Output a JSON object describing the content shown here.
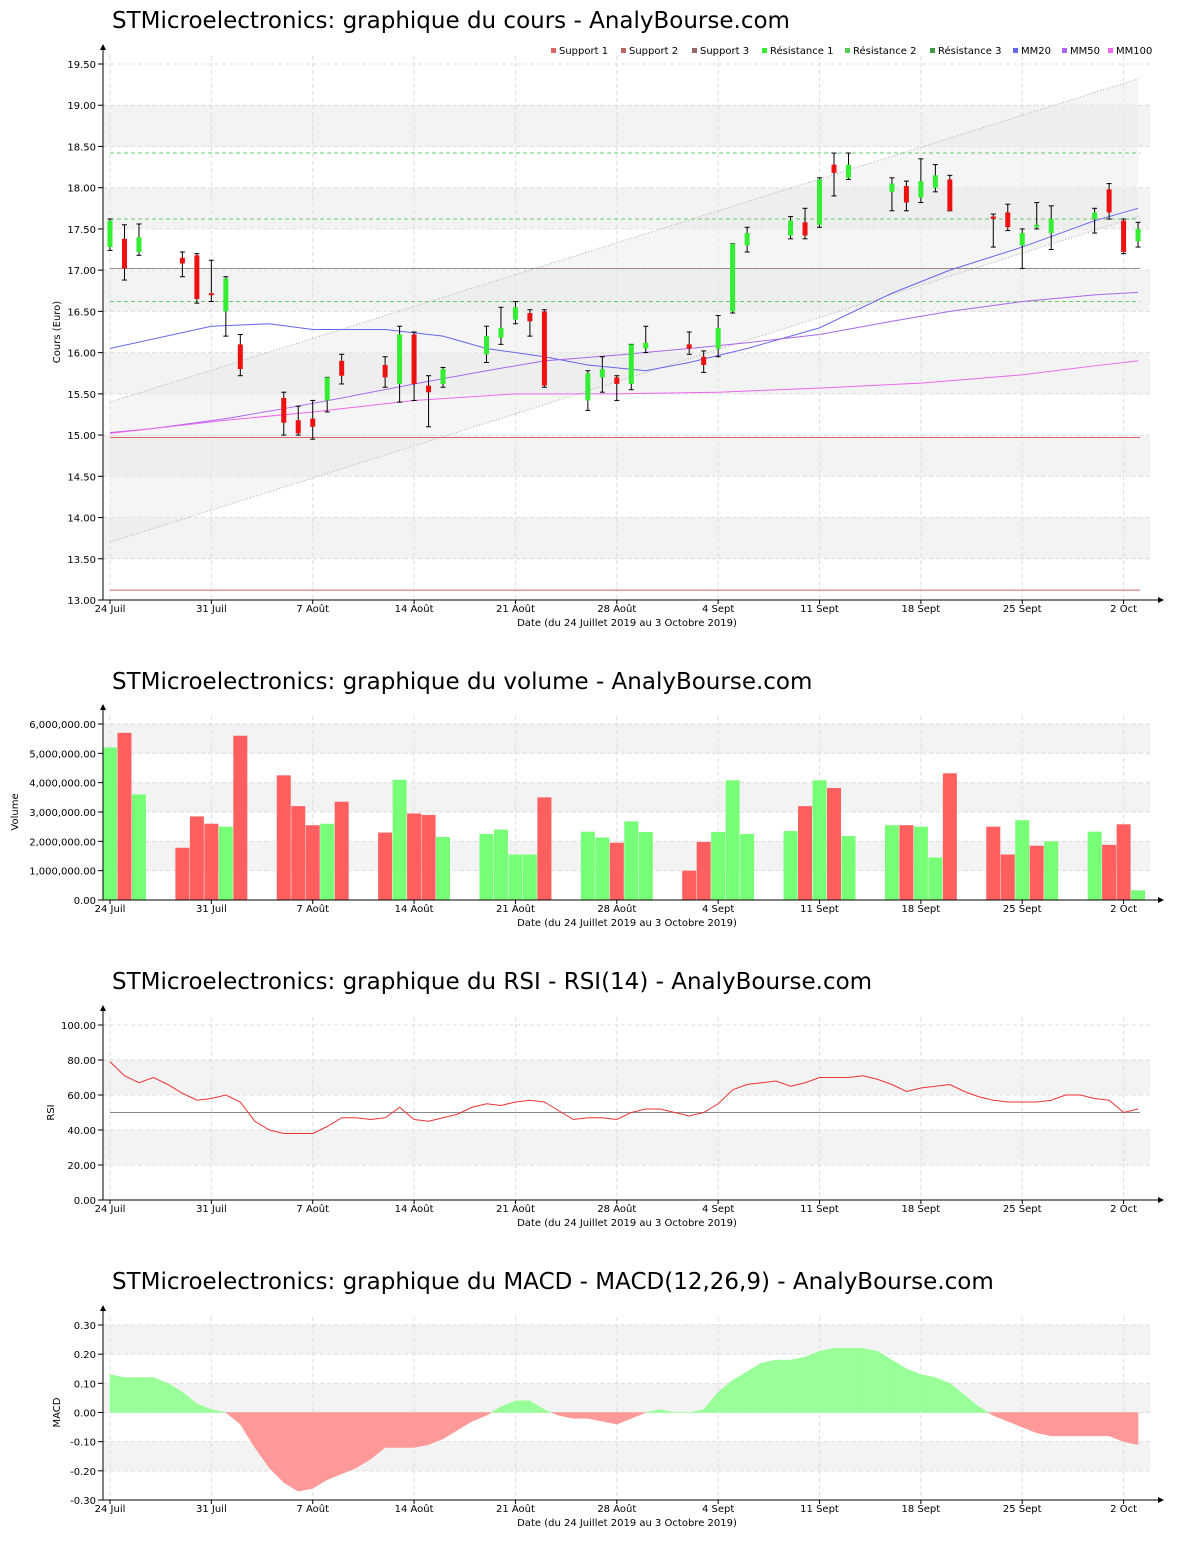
{
  "titles": {
    "price": "STMicroelectronics: graphique du cours - AnalyBourse.com",
    "volume": "STMicroelectronics: graphique du volume - AnalyBourse.com",
    "rsi": "STMicroelectronics: graphique du RSI - RSI(14) - AnalyBourse.com",
    "macd": "STMicroelectronics: graphique du MACD - MACD(12,26,9) - AnalyBourse.com"
  },
  "colors": {
    "up": "#33ee33",
    "down": "#ee1111",
    "vol_up": "#77ff77",
    "vol_down": "#ff5f5f",
    "support": "#dd6666",
    "resistance": "#66cc66",
    "mm20": "#6666ee",
    "mm50": "#aa66ee",
    "mm100": "#ee66ee",
    "rsi": "#ee3333",
    "macd_pos": "#99ff99",
    "macd_neg": "#ff9999"
  },
  "chart_data": [
    {
      "id": "price",
      "type": "candlestick",
      "title": "STMicroelectronics: graphique du cours - AnalyBourse.com",
      "xlabel": "Date (du 24 Juillet 2019 au 3 Octobre 2019)",
      "ylabel": "Cours (Euro)",
      "ylim": [
        13.0,
        19.5
      ],
      "yticks": [
        "13.00",
        "13.50",
        "14.00",
        "14.50",
        "15.00",
        "15.50",
        "16.00",
        "16.50",
        "17.00",
        "17.50",
        "18.00",
        "18.50",
        "19.00",
        "19.50"
      ],
      "xticks": [
        "24 Juil",
        "31 Juil",
        "7 Août",
        "14 Août",
        "21 Août",
        "28 Août",
        "4 Sept",
        "11 Sept",
        "18 Sept",
        "25 Sept",
        "2 Oct"
      ],
      "legend": [
        "Support 1",
        "Support 2",
        "Support 3",
        "Résistance 1",
        "Résistance 2",
        "Résistance 3",
        "MM20",
        "MM50",
        "MM100"
      ],
      "grid": true,
      "levels": [
        {
          "name": "Support 1",
          "value": 14.97
        },
        {
          "name": "Support 2",
          "value": 17.02
        },
        {
          "name": "Support 3",
          "value": 13.12
        },
        {
          "name": "Résistance 1",
          "value": 16.62
        },
        {
          "name": "Résistance 2",
          "value": 17.62
        },
        {
          "name": "Résistance 3",
          "value": 18.42
        }
      ],
      "candles": [
        {
          "day": 0,
          "o": 17.28,
          "h": 17.62,
          "l": 17.24,
          "c": 17.6
        },
        {
          "day": 1,
          "o": 17.38,
          "h": 17.55,
          "l": 16.88,
          "c": 17.02
        },
        {
          "day": 2,
          "o": 17.22,
          "h": 17.56,
          "l": 17.18,
          "c": 17.4
        },
        {
          "day": 5,
          "o": 17.15,
          "h": 17.22,
          "l": 16.92,
          "c": 17.08
        },
        {
          "day": 6,
          "o": 17.18,
          "h": 17.2,
          "l": 16.6,
          "c": 16.65
        },
        {
          "day": 7,
          "o": 16.72,
          "h": 17.12,
          "l": 16.62,
          "c": 16.7
        },
        {
          "day": 8,
          "o": 16.5,
          "h": 16.92,
          "l": 16.2,
          "c": 16.9
        },
        {
          "day": 9,
          "o": 16.1,
          "h": 16.22,
          "l": 15.72,
          "c": 15.8
        },
        {
          "day": 12,
          "o": 15.45,
          "h": 15.52,
          "l": 15.0,
          "c": 15.15
        },
        {
          "day": 13,
          "o": 15.18,
          "h": 15.35,
          "l": 15.0,
          "c": 15.02
        },
        {
          "day": 14,
          "o": 15.2,
          "h": 15.42,
          "l": 14.95,
          "c": 15.1
        },
        {
          "day": 15,
          "o": 15.42,
          "h": 15.7,
          "l": 15.28,
          "c": 15.7
        },
        {
          "day": 16,
          "o": 15.9,
          "h": 15.98,
          "l": 15.62,
          "c": 15.72
        },
        {
          "day": 19,
          "o": 15.85,
          "h": 15.95,
          "l": 15.58,
          "c": 15.7
        },
        {
          "day": 20,
          "o": 15.62,
          "h": 16.32,
          "l": 15.4,
          "c": 16.22
        },
        {
          "day": 21,
          "o": 16.22,
          "h": 16.25,
          "l": 15.42,
          "c": 15.62
        },
        {
          "day": 22,
          "o": 15.6,
          "h": 15.72,
          "l": 15.1,
          "c": 15.52
        },
        {
          "day": 23,
          "o": 15.62,
          "h": 15.82,
          "l": 15.58,
          "c": 15.8
        },
        {
          "day": 26,
          "o": 15.98,
          "h": 16.32,
          "l": 15.88,
          "c": 16.2
        },
        {
          "day": 27,
          "o": 16.18,
          "h": 16.55,
          "l": 16.1,
          "c": 16.3
        },
        {
          "day": 28,
          "o": 16.4,
          "h": 16.62,
          "l": 16.35,
          "c": 16.55
        },
        {
          "day": 29,
          "o": 16.48,
          "h": 16.52,
          "l": 16.2,
          "c": 16.38
        },
        {
          "day": 30,
          "o": 16.5,
          "h": 16.52,
          "l": 15.58,
          "c": 15.6
        },
        {
          "day": 33,
          "o": 15.42,
          "h": 15.78,
          "l": 15.3,
          "c": 15.75
        },
        {
          "day": 34,
          "o": 15.7,
          "h": 15.95,
          "l": 15.52,
          "c": 15.8
        },
        {
          "day": 35,
          "o": 15.7,
          "h": 15.72,
          "l": 15.42,
          "c": 15.62
        },
        {
          "day": 36,
          "o": 15.62,
          "h": 16.1,
          "l": 15.55,
          "c": 16.1
        },
        {
          "day": 37,
          "o": 16.05,
          "h": 16.32,
          "l": 16.0,
          "c": 16.12
        },
        {
          "day": 40,
          "o": 16.1,
          "h": 16.25,
          "l": 15.98,
          "c": 16.05
        },
        {
          "day": 41,
          "o": 15.95,
          "h": 16.02,
          "l": 15.76,
          "c": 15.85
        },
        {
          "day": 42,
          "o": 16.05,
          "h": 16.45,
          "l": 15.95,
          "c": 16.3
        },
        {
          "day": 43,
          "o": 16.5,
          "h": 17.32,
          "l": 16.48,
          "c": 17.32
        },
        {
          "day": 44,
          "o": 17.3,
          "h": 17.52,
          "l": 17.22,
          "c": 17.45
        },
        {
          "day": 47,
          "o": 17.42,
          "h": 17.65,
          "l": 17.38,
          "c": 17.6
        },
        {
          "day": 48,
          "o": 17.58,
          "h": 17.75,
          "l": 17.38,
          "c": 17.42
        },
        {
          "day": 49,
          "o": 17.55,
          "h": 18.12,
          "l": 17.52,
          "c": 18.1
        },
        {
          "day": 50,
          "o": 18.28,
          "h": 18.42,
          "l": 17.9,
          "c": 18.18
        },
        {
          "day": 51,
          "o": 18.12,
          "h": 18.42,
          "l": 18.1,
          "c": 18.28
        },
        {
          "day": 54,
          "o": 17.95,
          "h": 18.12,
          "l": 17.72,
          "c": 18.05
        },
        {
          "day": 55,
          "o": 18.02,
          "h": 18.08,
          "l": 17.72,
          "c": 17.82
        },
        {
          "day": 56,
          "o": 17.88,
          "h": 18.35,
          "l": 17.82,
          "c": 18.08
        },
        {
          "day": 57,
          "o": 18.0,
          "h": 18.28,
          "l": 17.95,
          "c": 18.15
        },
        {
          "day": 58,
          "o": 18.1,
          "h": 18.15,
          "l": 17.72,
          "c": 17.72
        },
        {
          "day": 61,
          "o": 17.65,
          "h": 17.68,
          "l": 17.28,
          "c": 17.62
        },
        {
          "day": 62,
          "o": 17.7,
          "h": 17.8,
          "l": 17.48,
          "c": 17.52
        },
        {
          "day": 63,
          "o": 17.3,
          "h": 17.5,
          "l": 17.02,
          "c": 17.45
        },
        {
          "day": 64,
          "o": 17.52,
          "h": 17.82,
          "l": 17.5,
          "c": 17.55
        },
        {
          "day": 65,
          "o": 17.45,
          "h": 17.78,
          "l": 17.25,
          "c": 17.62
        },
        {
          "day": 68,
          "o": 17.62,
          "h": 17.75,
          "l": 17.45,
          "c": 17.7
        },
        {
          "day": 69,
          "o": 17.98,
          "h": 18.05,
          "l": 17.62,
          "c": 17.7
        },
        {
          "day": 70,
          "o": 17.6,
          "h": 17.62,
          "l": 17.2,
          "c": 17.22
        },
        {
          "day": 71,
          "o": 17.35,
          "h": 17.58,
          "l": 17.28,
          "c": 17.5
        }
      ],
      "series": [
        {
          "name": "MM20",
          "x": [
            0,
            7,
            11,
            14,
            19,
            23,
            26,
            30,
            33,
            37,
            40,
            44,
            49,
            54,
            58,
            63,
            68,
            71
          ],
          "values": [
            16.05,
            16.32,
            16.35,
            16.28,
            16.28,
            16.2,
            16.05,
            15.95,
            15.85,
            15.78,
            15.88,
            16.05,
            16.3,
            16.72,
            17.0,
            17.28,
            17.6,
            17.75
          ]
        },
        {
          "name": "MM50",
          "x": [
            0,
            3,
            8,
            12,
            16,
            21,
            26,
            30,
            35,
            40,
            44,
            49,
            54,
            58,
            63,
            68,
            71
          ],
          "values": [
            15.03,
            15.08,
            15.2,
            15.32,
            15.45,
            15.62,
            15.78,
            15.9,
            15.97,
            16.05,
            16.12,
            16.22,
            16.38,
            16.5,
            16.62,
            16.7,
            16.73
          ]
        },
        {
          "name": "MM100",
          "x": [
            0,
            8,
            14,
            21,
            28,
            35,
            42,
            49,
            56,
            63,
            68,
            71
          ],
          "values": [
            15.02,
            15.18,
            15.28,
            15.42,
            15.5,
            15.5,
            15.52,
            15.57,
            15.63,
            15.73,
            15.84,
            15.9
          ]
        }
      ]
    },
    {
      "id": "volume",
      "type": "bar",
      "title": "STMicroelectronics: graphique du volume - AnalyBourse.com",
      "xlabel": "Date (du 24 Juillet 2019 au 3 Octobre 2019)",
      "ylabel": "Volume",
      "ylim": [
        0,
        6000000
      ],
      "yticks": [
        "0.00",
        "1,000,000.00",
        "2,000,000.00",
        "3,000,000.00",
        "4,000,000.00",
        "5,000,000.00",
        "6,000,000.00"
      ],
      "xticks": [
        "24 Juil",
        "31 Juil",
        "7 Août",
        "14 Août",
        "21 Août",
        "28 Août",
        "4 Sept",
        "11 Sept",
        "18 Sept",
        "25 Sept",
        "2 Oct"
      ],
      "grid": true,
      "days": [
        0,
        1,
        2,
        5,
        6,
        7,
        8,
        9,
        12,
        13,
        14,
        15,
        16,
        19,
        20,
        21,
        22,
        23,
        26,
        27,
        28,
        29,
        30,
        33,
        34,
        35,
        36,
        37,
        40,
        41,
        42,
        43,
        44,
        47,
        48,
        49,
        50,
        51,
        54,
        55,
        56,
        57,
        58,
        61,
        62,
        63,
        64,
        65,
        68,
        69,
        70,
        71
      ],
      "values": [
        5200000,
        5700000,
        3600000,
        1780000,
        2850000,
        2600000,
        2500000,
        5600000,
        4250000,
        3200000,
        2550000,
        2600000,
        3350000,
        2300000,
        4100000,
        2950000,
        2900000,
        2150000,
        2250000,
        2400000,
        1550000,
        1550000,
        3500000,
        2330000,
        2130000,
        1950000,
        2680000,
        2320000,
        1000000,
        1980000,
        2320000,
        4080000,
        2250000,
        2350000,
        3200000,
        4080000,
        3820000,
        2180000,
        2550000,
        2550000,
        2500000,
        1450000,
        4320000,
        2500000,
        1550000,
        2720000,
        1850000,
        2000000,
        2330000,
        1880000,
        2580000,
        330000
      ],
      "up": [
        1,
        0,
        1,
        0,
        0,
        0,
        1,
        0,
        0,
        0,
        0,
        1,
        0,
        0,
        1,
        0,
        0,
        1,
        1,
        1,
        1,
        1,
        0,
        1,
        1,
        0,
        1,
        1,
        0,
        0,
        1,
        1,
        1,
        1,
        0,
        1,
        0,
        1,
        1,
        0,
        1,
        1,
        0,
        0,
        0,
        1,
        0,
        1,
        1,
        0,
        0,
        1
      ]
    },
    {
      "id": "rsi",
      "type": "line",
      "title": "STMicroelectronics: graphique du RSI - RSI(14) - AnalyBourse.com",
      "xlabel": "Date (du 24 Juillet 2019 au 3 Octobre 2019)",
      "ylabel": "RSI",
      "ylim": [
        0,
        100
      ],
      "yticks": [
        "0.00",
        "20.00",
        "40.00",
        "60.00",
        "80.00",
        "100.00"
      ],
      "xticks": [
        "24 Juil",
        "31 Juil",
        "7 Août",
        "14 Août",
        "21 Août",
        "28 Août",
        "4 Sept",
        "11 Sept",
        "18 Sept",
        "25 Sept",
        "2 Oct"
      ],
      "reference": 50,
      "grid": true,
      "x": [
        0,
        1,
        2,
        3,
        4,
        5,
        6,
        7,
        8,
        9,
        10,
        11,
        12,
        13,
        14,
        15,
        16,
        17,
        18,
        19,
        20,
        21,
        22,
        23,
        24,
        25,
        26,
        27,
        28,
        29,
        30,
        31,
        32,
        33,
        34,
        35,
        36,
        37,
        38,
        39,
        40,
        41,
        42,
        43,
        44,
        45,
        46,
        47,
        48,
        49,
        50,
        51,
        52,
        53,
        54,
        55,
        56,
        57,
        58,
        59,
        60,
        61,
        62,
        63,
        64,
        65,
        66,
        67,
        68,
        69,
        70,
        71
      ],
      "values": [
        79,
        71,
        67,
        70,
        66,
        61,
        57,
        58,
        60,
        56,
        45,
        40,
        38,
        38,
        38,
        42,
        47,
        47,
        46,
        47,
        53,
        46,
        45,
        47,
        49,
        53,
        55,
        54,
        56,
        57,
        56,
        51,
        46,
        47,
        47,
        46,
        50,
        52,
        52,
        50,
        48,
        50,
        55,
        63,
        66,
        67,
        68,
        65,
        67,
        70,
        70,
        70,
        71,
        69,
        66,
        62,
        64,
        65,
        66,
        62,
        59,
        57,
        56,
        56,
        56,
        57,
        60,
        60,
        58,
        57,
        50,
        52
      ]
    },
    {
      "id": "macd",
      "type": "area",
      "title": "STMicroelectronics: graphique du MACD - MACD(12,26,9) - AnalyBourse.com",
      "xlabel": "Date (du 24 Juillet 2019 au 3 Octobre 2019)",
      "ylabel": "MACD",
      "ylim": [
        -0.3,
        0.3
      ],
      "yticks": [
        "-0.30",
        "-0.20",
        "-0.10",
        "0.00",
        "0.10",
        "0.20",
        "0.30"
      ],
      "xticks": [
        "24 Juil",
        "31 Juil",
        "7 Août",
        "14 Août",
        "21 Août",
        "28 Août",
        "4 Sept",
        "11 Sept",
        "18 Sept",
        "25 Sept",
        "2 Oct"
      ],
      "grid": true,
      "x": [
        0,
        1,
        2,
        3,
        4,
        5,
        6,
        7,
        8,
        9,
        10,
        11,
        12,
        13,
        14,
        15,
        16,
        17,
        18,
        19,
        20,
        21,
        22,
        23,
        24,
        25,
        26,
        27,
        28,
        29,
        30,
        31,
        32,
        33,
        34,
        35,
        36,
        37,
        38,
        39,
        40,
        41,
        42,
        43,
        44,
        45,
        46,
        47,
        48,
        49,
        50,
        51,
        52,
        53,
        54,
        55,
        56,
        57,
        58,
        59,
        60,
        61,
        62,
        63,
        64,
        65,
        66,
        67,
        68,
        69,
        70,
        71
      ],
      "values": [
        0.13,
        0.12,
        0.12,
        0.12,
        0.1,
        0.07,
        0.03,
        0.01,
        0.0,
        -0.04,
        -0.12,
        -0.19,
        -0.24,
        -0.27,
        -0.26,
        -0.23,
        -0.21,
        -0.19,
        -0.16,
        -0.12,
        -0.12,
        -0.12,
        -0.11,
        -0.09,
        -0.06,
        -0.03,
        -0.01,
        0.02,
        0.04,
        0.04,
        0.01,
        -0.01,
        -0.02,
        -0.02,
        -0.03,
        -0.04,
        -0.02,
        0.0,
        0.01,
        0.0,
        0.0,
        0.01,
        0.07,
        0.11,
        0.14,
        0.17,
        0.18,
        0.18,
        0.19,
        0.21,
        0.22,
        0.22,
        0.22,
        0.21,
        0.18,
        0.15,
        0.13,
        0.12,
        0.1,
        0.06,
        0.02,
        -0.01,
        -0.03,
        -0.05,
        -0.07,
        -0.08,
        -0.08,
        -0.08,
        -0.08,
        -0.08,
        -0.1,
        -0.11
      ]
    }
  ]
}
